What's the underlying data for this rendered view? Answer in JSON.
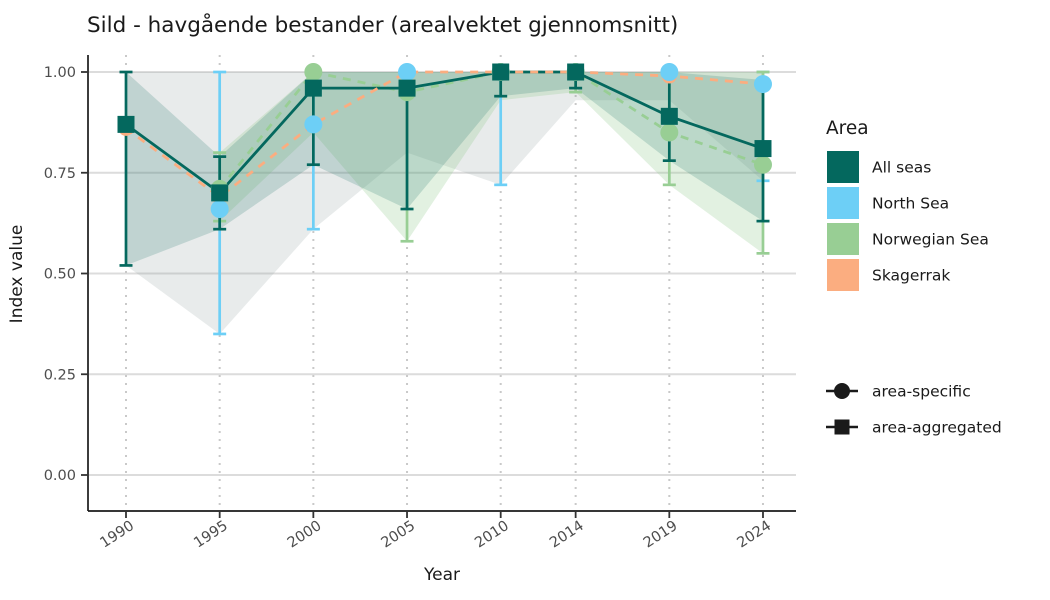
{
  "chart_data": {
    "type": "line",
    "title": "Sild - havgående bestander (arealvektet gjennomsnitt)",
    "xlabel": "Year",
    "ylabel": "Index value",
    "x": [
      1990,
      1995,
      2000,
      2005,
      2010,
      2014,
      2019,
      2024
    ],
    "x_tick_labels": [
      "1990",
      "1995",
      "2000",
      "2005",
      "2010",
      "2014",
      "2019",
      "2024"
    ],
    "ylim": [
      0,
      1
    ],
    "yticks": [
      0,
      0.25,
      0.5,
      0.75,
      1.0
    ],
    "ytick_labels": [
      "0.00",
      "0.25",
      "0.50",
      "0.75",
      "1.00"
    ],
    "grid": "horizontal-solid, vertical-dotted",
    "series": [
      {
        "name": "All seas",
        "role": "area-aggregated",
        "marker": "square",
        "line": "solid",
        "color": "#04685E",
        "values": [
          0.87,
          0.7,
          0.96,
          0.96,
          1.0,
          1.0,
          0.89,
          0.81
        ],
        "err_lower": [
          0.52,
          0.61,
          0.77,
          0.66,
          0.94,
          0.96,
          0.78,
          0.63
        ],
        "err_upper": [
          1.0,
          0.79,
          1.0,
          1.0,
          1.0,
          1.0,
          1.0,
          0.98
        ],
        "band": {
          "x": [
            1990,
            1995,
            2000,
            2005,
            2010,
            2014,
            2019,
            2024
          ],
          "lower": [
            0.52,
            0.61,
            0.77,
            0.66,
            0.94,
            0.96,
            0.78,
            0.63
          ],
          "upper": [
            1.0,
            0.79,
            1.0,
            1.0,
            1.0,
            1.0,
            1.0,
            0.98
          ],
          "fill": "#0B6A60",
          "opacity": 0.18
        }
      },
      {
        "name": "North Sea",
        "role": "area-specific",
        "marker": "circle",
        "line": "none",
        "color": "#6DCFF6",
        "values": [
          null,
          0.66,
          0.87,
          1.0,
          1.0,
          1.0,
          1.0,
          0.97
        ],
        "err_lower": [
          null,
          0.35,
          0.61,
          null,
          0.72,
          null,
          null,
          0.73
        ],
        "err_upper": [
          null,
          1.0,
          1.0,
          null,
          1.0,
          null,
          null,
          1.0
        ],
        "band": {
          "x": [
            1990,
            1995,
            2000,
            2005,
            2010,
            2014,
            2019,
            2024
          ],
          "lower": [
            0.52,
            0.35,
            0.61,
            0.8,
            0.72,
            0.93,
            0.93,
            0.73
          ],
          "upper": [
            1.0,
            1.0,
            1.0,
            1.0,
            1.0,
            1.0,
            1.0,
            1.0
          ],
          "fill": "#8D9B9B",
          "opacity": 0.2
        }
      },
      {
        "name": "Norwegian Sea",
        "role": "area-specific",
        "marker": "circle",
        "line": "dashed",
        "color": "#98CE94",
        "values": [
          null,
          0.71,
          1.0,
          0.95,
          1.0,
          1.0,
          0.85,
          0.77
        ],
        "err_lower": [
          null,
          0.63,
          null,
          0.58,
          null,
          0.95,
          0.72,
          0.55
        ],
        "err_upper": [
          null,
          0.8,
          null,
          1.0,
          null,
          1.0,
          1.0,
          1.0
        ],
        "band": {
          "x": [
            1995,
            2000,
            2005,
            2010,
            2014,
            2019,
            2024
          ],
          "lower": [
            0.63,
            0.85,
            0.58,
            0.93,
            0.95,
            0.72,
            0.55
          ],
          "upper": [
            0.8,
            1.0,
            1.0,
            1.0,
            1.0,
            1.0,
            1.0
          ],
          "fill": "#98CE94",
          "opacity": 0.28
        }
      },
      {
        "name": "Skagerrak",
        "role": "area-specific",
        "marker": "circle",
        "line": "dashed",
        "color": "#FBAD80",
        "values": [
          0.86,
          0.69,
          0.87,
          1.0,
          1.0,
          1.0,
          0.99,
          0.97
        ],
        "err_lower": [
          null,
          null,
          null,
          null,
          null,
          null,
          null,
          null
        ],
        "err_upper": [
          null,
          null,
          null,
          null,
          null,
          null,
          null,
          null
        ],
        "band": null
      }
    ],
    "legend_position": "right"
  },
  "legend_area": {
    "title": "Area",
    "items": [
      {
        "label": "All seas",
        "color": "#04685E"
      },
      {
        "label": "North Sea",
        "color": "#6DCFF6"
      },
      {
        "label": "Norwegian Sea",
        "color": "#98CE94"
      },
      {
        "label": "Skagerrak",
        "color": "#FBAD80"
      }
    ]
  },
  "legend_shape": {
    "items": [
      {
        "label": "area-specific",
        "shape": "circle"
      },
      {
        "label": "area-aggregated",
        "shape": "square"
      }
    ]
  }
}
